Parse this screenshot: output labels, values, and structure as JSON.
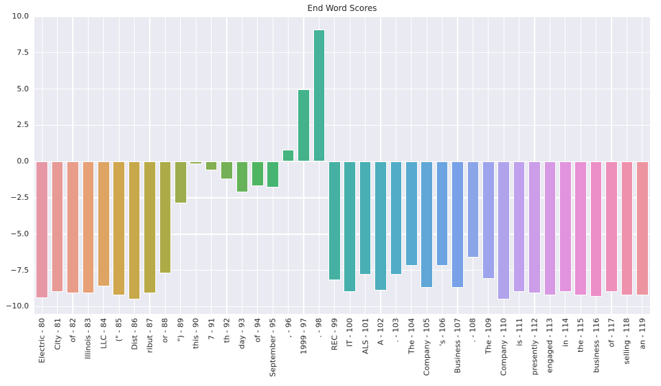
{
  "chart_data": {
    "type": "bar",
    "title": "End Word Scores",
    "xlabel": "",
    "ylabel": "",
    "categories": [
      "Electric - 80",
      "City - 81",
      "of - 82",
      "Illinois - 83",
      "LLC - 84",
      "(\" - 85",
      "Dist - 86",
      "ribut - 87",
      "or - 88",
      "\") - 89",
      "this - 90",
      "7 - 91",
      "th - 92",
      "day - 93",
      "of - 94",
      "September - 95",
      ", - 96",
      "1999 - 97",
      ". - 98",
      "REC - 99",
      "IT - 100",
      "ALS - 101",
      "A - 102",
      ". - 103",
      "The - 104",
      "Company - 105",
      "'s - 106",
      "Business - 107",
      ". - 108",
      "The - 109",
      "Company - 110",
      "is - 111",
      "presently - 112",
      "engaged - 113",
      "in - 114",
      "the - 115",
      "business - 116",
      "of - 117",
      "selling - 118",
      "an - 119"
    ],
    "values": [
      -9.4,
      -9.0,
      -9.1,
      -9.1,
      -8.6,
      -9.2,
      -9.5,
      -9.1,
      -7.7,
      -2.9,
      -0.2,
      -0.6,
      -1.2,
      -2.1,
      -1.7,
      -1.8,
      0.8,
      5.0,
      9.1,
      -8.2,
      -9.0,
      -7.8,
      -8.9,
      -7.8,
      -7.2,
      -8.7,
      -7.2,
      -8.7,
      -6.6,
      -8.1,
      -9.5,
      -9.0,
      -9.1,
      -9.2,
      -9.0,
      -9.2,
      -9.3,
      -9.0,
      -9.2,
      -9.2
    ],
    "colors": [
      "#e697a6",
      "#e79a95",
      "#e89d8b",
      "#e8a077",
      "#dda463",
      "#d0a64e",
      "#c7a84b",
      "#b9aa47",
      "#adab48",
      "#9dac4c",
      "#90ad4e",
      "#83ae51",
      "#74b055",
      "#66b35a",
      "#50b562",
      "#47b571",
      "#45b47f",
      "#44b38c",
      "#45b299",
      "#46b1a3",
      "#48b0ac",
      "#4aafb5",
      "#4daebe",
      "#52acc7",
      "#58aad0",
      "#60a7d8",
      "#6ba4e0",
      "#78a1e7",
      "#8ba5e9",
      "#9ea4ec",
      "#b0a3ec",
      "#bfa1ed",
      "#cc9de8",
      "#d799e3",
      "#e194dd",
      "#e891d4",
      "#ec8fc8",
      "#ee8fbb",
      "#ee91ad",
      "#ec95a0"
    ],
    "yticks": [
      10.0,
      7.5,
      5.0,
      2.5,
      0.0,
      -2.5,
      -5.0,
      -7.5,
      -10.0
    ],
    "ytick_labels": [
      "10.0",
      "7.5",
      "5.0",
      "2.5",
      "0.0",
      "−2.5",
      "−5.0",
      "−7.5",
      "−10.0"
    ],
    "ylim": [
      -10.5,
      10.0
    ],
    "grid": true,
    "legend": "none",
    "plot_bg": "#eaeaf2",
    "grid_color": "#ffffff",
    "text_color": "#262626",
    "bar_edge_color": "#ffffff"
  }
}
